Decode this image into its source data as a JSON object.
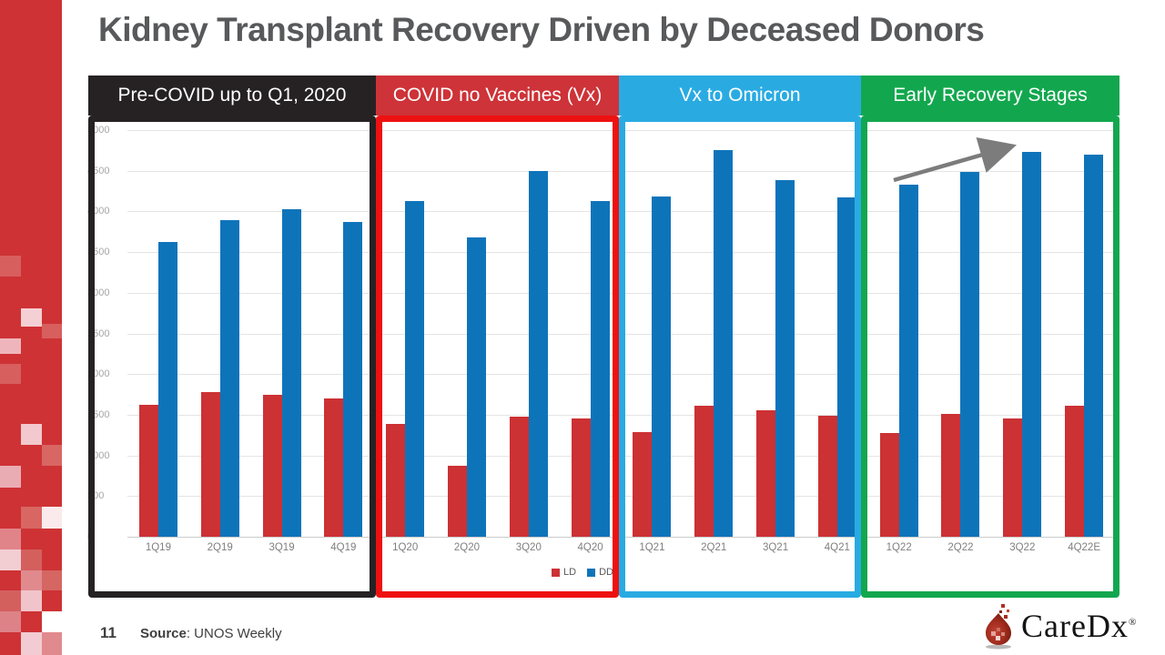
{
  "title": "Kidney Transplant Recovery Driven by Deceased Donors",
  "panels": [
    {
      "label": "Pre-COVID up to Q1, 2020",
      "color": "#262224"
    },
    {
      "label": "COVID no Vaccines (Vx)",
      "color": "#cd3338"
    },
    {
      "label": "Vx to Omicron",
      "color": "#29abe2"
    },
    {
      "label": "Early Recovery Stages",
      "color": "#12a74e"
    }
  ],
  "chart_data": {
    "type": "bar",
    "categories": [
      "1Q19",
      "2Q19",
      "3Q19",
      "4Q19",
      "1Q20",
      "2Q20",
      "3Q20",
      "4Q20",
      "1Q21",
      "2Q21",
      "3Q21",
      "4Q21",
      "1Q22",
      "2Q22",
      "3Q22",
      "4Q22E"
    ],
    "series": [
      {
        "name": "LD",
        "color": "#cc3134",
        "values": [
          1620,
          1780,
          1750,
          1700,
          1390,
          870,
          1480,
          1450,
          1290,
          1610,
          1550,
          1490,
          1280,
          1510,
          1450,
          1610
        ]
      },
      {
        "name": "DD",
        "color": "#0e74ba",
        "values": [
          3620,
          3890,
          4030,
          3870,
          4130,
          3680,
          4500,
          4130,
          4180,
          4750,
          4390,
          4170,
          4330,
          4490,
          4730,
          4700
        ]
      }
    ],
    "ylim": [
      0,
      5000
    ],
    "ytick_step": 500,
    "grid": true,
    "legend_position": "bottom-center",
    "annotation": "gray upward trend arrow above 1Q22-3Q22 DD bars",
    "panel_grouping": [
      {
        "label": "Pre-COVID up to Q1, 2020",
        "categories": [
          "1Q19",
          "2Q19",
          "3Q19",
          "4Q19"
        ]
      },
      {
        "label": "COVID no Vaccines (Vx)",
        "categories": [
          "1Q20",
          "2Q20",
          "3Q20",
          "4Q20"
        ]
      },
      {
        "label": "Vx to Omicron",
        "categories": [
          "1Q21",
          "2Q21",
          "3Q21",
          "4Q21"
        ]
      },
      {
        "label": "Early Recovery Stages",
        "categories": [
          "1Q22",
          "2Q22",
          "3Q22",
          "4Q22E"
        ]
      }
    ]
  },
  "footer": {
    "page_number": "11",
    "source_label": "Source",
    "source_rest": ": UNOS Weekly"
  },
  "logo": {
    "text": "CareDx",
    "reg": "®"
  },
  "colors": {
    "bar_ld": "#cc3134",
    "bar_dd": "#0e74ba",
    "sidebar_red": "#ce3235",
    "title_gray": "#58595b",
    "arrow_gray": "#7c7c7c"
  }
}
